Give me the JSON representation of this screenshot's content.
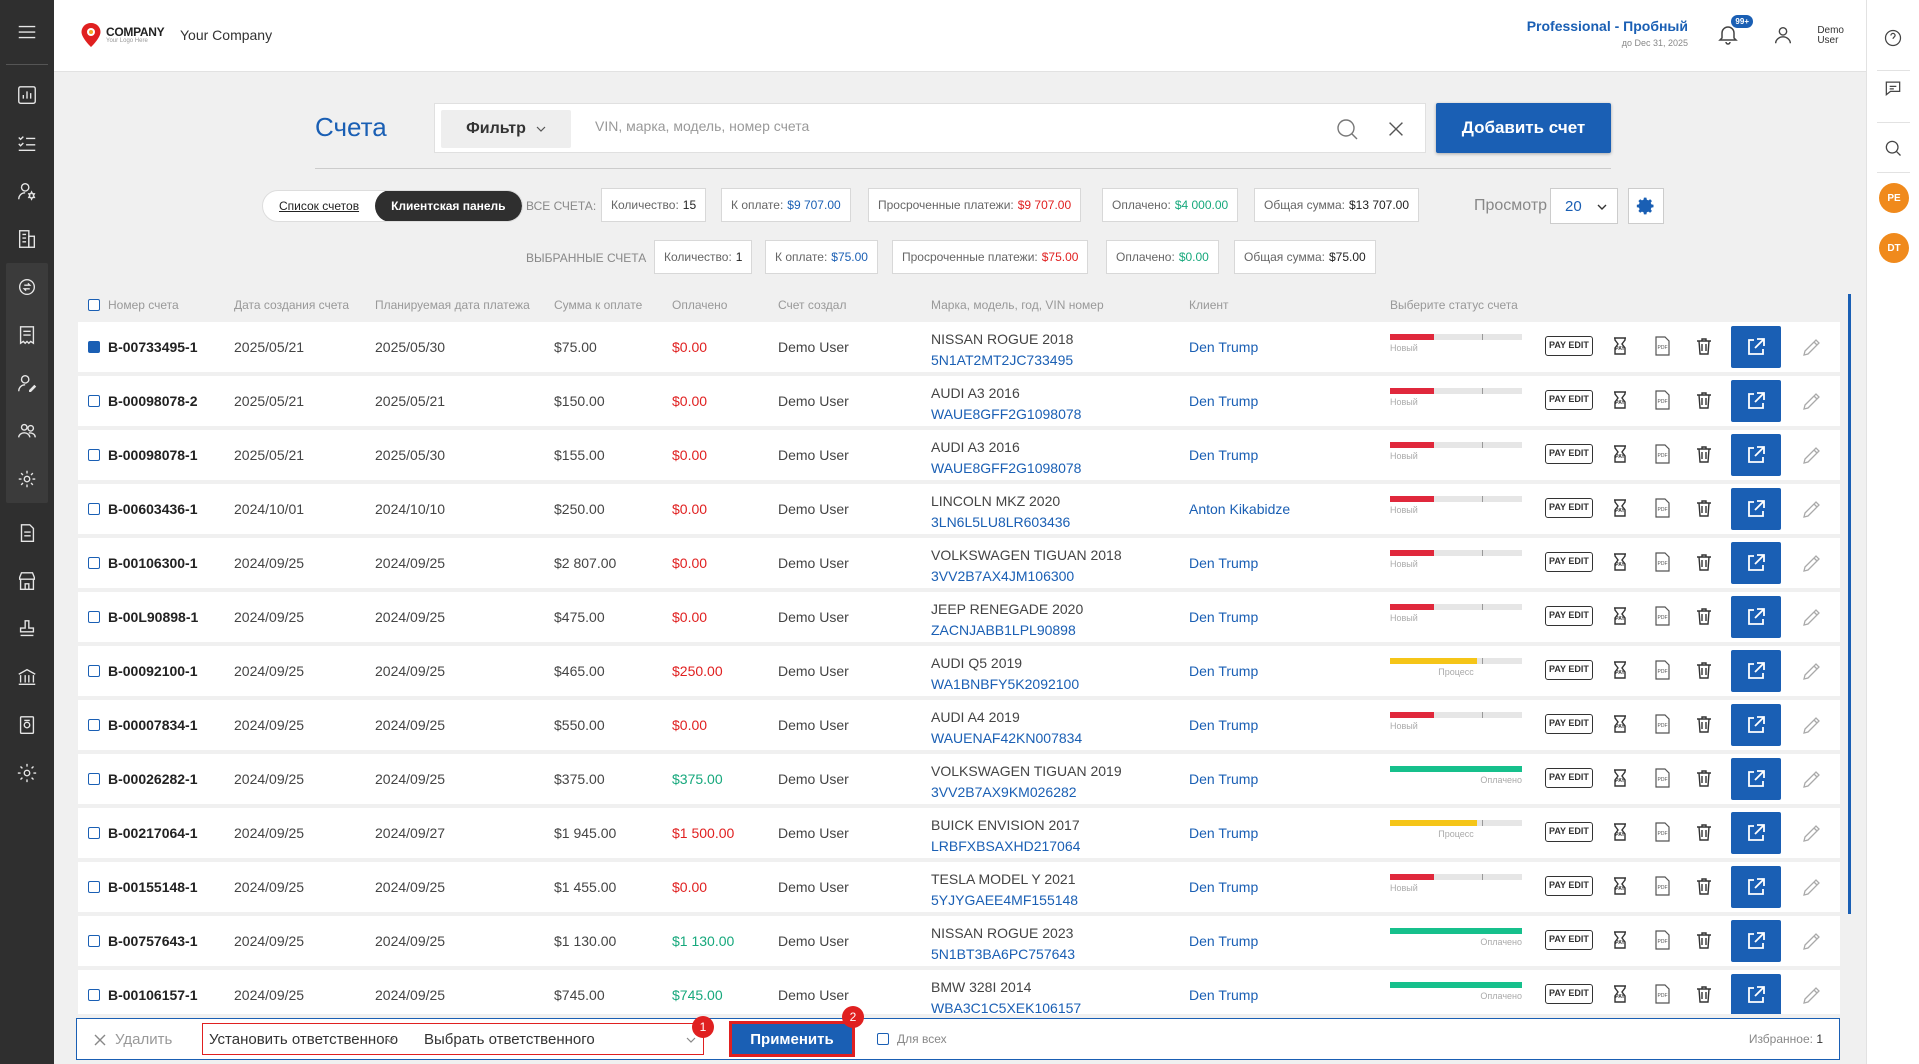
{
  "company": {
    "logo_line1": "COMPANY",
    "logo_line2": "Your Logo Here",
    "name": "Your Company"
  },
  "plan": {
    "name": "Professional - Пробный",
    "until": "до Dec 31, 2025"
  },
  "notifications": {
    "count": "99+"
  },
  "user": {
    "line1": "Demo",
    "line2": "User"
  },
  "rail": {
    "avatar1": "PE",
    "avatar2": "DT",
    "colors": {
      "avatar": "#f08a1c"
    }
  },
  "page": {
    "title": "Счета",
    "filter_label": "Фильтр",
    "search_placeholder": "VIN, марка, модель, номер счета",
    "add_button": "Добавить счет"
  },
  "view_toggle": {
    "list": "Список счетов",
    "client_panel": "Клиентская панель"
  },
  "all_stats": {
    "label": "ВСЕ СЧЕТА:",
    "count_label": "Количество:",
    "count": "15",
    "due_label": "К оплате:",
    "due": "$9 707.00",
    "overdue_label": "Просроченные платежи:",
    "overdue": "$9 707.00",
    "paid_label": "Оплачено:",
    "paid": "$4 000.00",
    "total_label": "Общая сумма:",
    "total": "$13 707.00"
  },
  "selected_stats": {
    "label": "ВЫБРАННЫЕ СЧЕТА",
    "count_label": "Количество:",
    "count": "1",
    "due_label": "К оплате:",
    "due": "$75.00",
    "overdue_label": "Просроченные платежи:",
    "overdue": "$75.00",
    "paid_label": "Оплачено:",
    "paid": "$0.00",
    "total_label": "Общая сумма:",
    "total": "$75.00"
  },
  "view": {
    "label": "Просмотр",
    "per_page": "20"
  },
  "table": {
    "headers": {
      "number": "Номер счета",
      "created": "Дата создания счета",
      "planned": "Планируемая дата платежа",
      "amount": "Сумма к оплате",
      "paid": "Оплачено",
      "created_by": "Счет создал",
      "car": "Марка, модель, год, VIN номер",
      "client": "Клиент",
      "status": "Выберите статус счета"
    },
    "payedit_label": "PAY EDIT",
    "status_colors": {
      "new": "#e0283c",
      "process": "#f5c518",
      "paid": "#16c08c"
    },
    "rows": [
      {
        "checked": true,
        "number": "B-00733495-1",
        "created": "2025/05/21",
        "planned": "2025/05/30",
        "amount": "$75.00",
        "paid": "$0.00",
        "paid_color": "red",
        "by": "Demo User",
        "car": "NISSAN ROGUE 2018",
        "vin": "5N1AT2MT2JC733495",
        "client": "Den Trump",
        "status": "Новый",
        "status_kind": "new",
        "progress": 0.33
      },
      {
        "checked": false,
        "number": "B-00098078-2",
        "created": "2025/05/21",
        "planned": "2025/05/21",
        "amount": "$150.00",
        "paid": "$0.00",
        "paid_color": "red",
        "by": "Demo User",
        "car": "AUDI A3 2016",
        "vin": "WAUE8GFF2G1098078",
        "client": "Den Trump",
        "status": "Новый",
        "status_kind": "new",
        "progress": 0.33
      },
      {
        "checked": false,
        "number": "B-00098078-1",
        "created": "2025/05/21",
        "planned": "2025/05/30",
        "amount": "$155.00",
        "paid": "$0.00",
        "paid_color": "red",
        "by": "Demo User",
        "car": "AUDI A3 2016",
        "vin": "WAUE8GFF2G1098078",
        "client": "Den Trump",
        "status": "Новый",
        "status_kind": "new",
        "progress": 0.33
      },
      {
        "checked": false,
        "number": "B-00603436-1",
        "created": "2024/10/01",
        "planned": "2024/10/10",
        "amount": "$250.00",
        "paid": "$0.00",
        "paid_color": "red",
        "by": "Demo User",
        "car": "LINCOLN MKZ 2020",
        "vin": "3LN6L5LU8LR603436",
        "client": "Anton Kikabidze",
        "status": "Новый",
        "status_kind": "new",
        "progress": 0.33
      },
      {
        "checked": false,
        "number": "B-00106300-1",
        "created": "2024/09/25",
        "planned": "2024/09/25",
        "amount": "$2 807.00",
        "paid": "$0.00",
        "paid_color": "red",
        "by": "Demo User",
        "car": "VOLKSWAGEN TIGUAN 2018",
        "vin": "3VV2B7AX4JM106300",
        "client": "Den Trump",
        "status": "Новый",
        "status_kind": "new",
        "progress": 0.33
      },
      {
        "checked": false,
        "number": "B-00L90898-1",
        "created": "2024/09/25",
        "planned": "2024/09/25",
        "amount": "$475.00",
        "paid": "$0.00",
        "paid_color": "red",
        "by": "Demo User",
        "car": "JEEP RENEGADE 2020",
        "vin": "ZACNJABB1LPL90898",
        "client": "Den Trump",
        "status": "Новый",
        "status_kind": "new",
        "progress": 0.33
      },
      {
        "checked": false,
        "number": "B-00092100-1",
        "created": "2024/09/25",
        "planned": "2024/09/25",
        "amount": "$465.00",
        "paid": "$250.00",
        "paid_color": "red",
        "by": "Demo User",
        "car": "AUDI Q5 2019",
        "vin": "WA1BNBFY5K2092100",
        "client": "Den Trump",
        "status": "Процесс",
        "status_kind": "process",
        "progress": 0.66
      },
      {
        "checked": false,
        "number": "B-00007834-1",
        "created": "2024/09/25",
        "planned": "2024/09/25",
        "amount": "$550.00",
        "paid": "$0.00",
        "paid_color": "red",
        "by": "Demo User",
        "car": "AUDI A4 2019",
        "vin": "WAUENAF42KN007834",
        "client": "Den Trump",
        "status": "Новый",
        "status_kind": "new",
        "progress": 0.33
      },
      {
        "checked": false,
        "number": "B-00026282-1",
        "created": "2024/09/25",
        "planned": "2024/09/25",
        "amount": "$375.00",
        "paid": "$375.00",
        "paid_color": "green",
        "by": "Demo User",
        "car": "VOLKSWAGEN TIGUAN 2019",
        "vin": "3VV2B7AX9KM026282",
        "client": "Den Trump",
        "status": "Оплачено",
        "status_kind": "paid",
        "progress": 1.0
      },
      {
        "checked": false,
        "number": "B-00217064-1",
        "created": "2024/09/25",
        "planned": "2024/09/27",
        "amount": "$1 945.00",
        "paid": "$1 500.00",
        "paid_color": "red",
        "by": "Demo User",
        "car": "BUICK ENVISION 2017",
        "vin": "LRBFXBSAXHD217064",
        "client": "Den Trump",
        "status": "Процесс",
        "status_kind": "process",
        "progress": 0.66
      },
      {
        "checked": false,
        "number": "B-00155148-1",
        "created": "2024/09/25",
        "planned": "2024/09/25",
        "amount": "$1 455.00",
        "paid": "$0.00",
        "paid_color": "red",
        "by": "Demo User",
        "car": "TESLA MODEL Y 2021",
        "vin": "5YJYGAEE4MF155148",
        "client": "Den Trump",
        "status": "Новый",
        "status_kind": "new",
        "progress": 0.33
      },
      {
        "checked": false,
        "number": "B-00757643-1",
        "created": "2024/09/25",
        "planned": "2024/09/25",
        "amount": "$1 130.00",
        "paid": "$1 130.00",
        "paid_color": "green",
        "by": "Demo User",
        "car": "NISSAN ROGUE 2023",
        "vin": "5N1BT3BA6PC757643",
        "client": "Den Trump",
        "status": "Оплачено",
        "status_kind": "paid",
        "progress": 1.0
      },
      {
        "checked": false,
        "number": "B-00106157-1",
        "created": "2024/09/25",
        "planned": "2024/09/25",
        "amount": "$745.00",
        "paid": "$745.00",
        "paid_color": "green",
        "by": "Demo User",
        "car": "BMW 328I 2014",
        "vin": "WBA3C1C5XEK106157",
        "client": "Den Trump",
        "status": "Оплачено",
        "status_kind": "paid",
        "progress": 1.0
      }
    ]
  },
  "bottom": {
    "delete": "Удалить",
    "set_responsible": "Установить ответственного",
    "choose_responsible": "Выбрать ответственного",
    "apply": "Применить",
    "badge1": "1",
    "badge2": "2",
    "for_all": "Для всех",
    "favorites_label": "Избранное:",
    "favorites": "1"
  }
}
